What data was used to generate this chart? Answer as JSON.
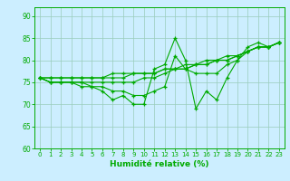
{
  "xlabel": "Humidité relative (%)",
  "bg_color": "#cceeff",
  "grid_color": "#99ccbb",
  "line_color": "#00aa00",
  "xlim": [
    -0.5,
    23.5
  ],
  "ylim": [
    60,
    92
  ],
  "yticks": [
    60,
    65,
    70,
    75,
    80,
    85,
    90
  ],
  "xticks": [
    0,
    1,
    2,
    3,
    4,
    5,
    6,
    7,
    8,
    9,
    10,
    11,
    12,
    13,
    14,
    15,
    16,
    17,
    18,
    19,
    20,
    21,
    22,
    23
  ],
  "series": [
    [
      76,
      75,
      75,
      75,
      74,
      74,
      73,
      71,
      72,
      70,
      70,
      78,
      79,
      85,
      80,
      69,
      73,
      71,
      76,
      80,
      83,
      84,
      83,
      84
    ],
    [
      76,
      75,
      75,
      75,
      75,
      74,
      74,
      73,
      73,
      72,
      72,
      73,
      74,
      81,
      78,
      77,
      77,
      77,
      79,
      80,
      82,
      83,
      83,
      84
    ],
    [
      76,
      75,
      75,
      75,
      75,
      75,
      75,
      75,
      75,
      75,
      76,
      76,
      77,
      78,
      79,
      79,
      80,
      80,
      81,
      81,
      82,
      83,
      83,
      84
    ],
    [
      76,
      76,
      76,
      76,
      76,
      76,
      76,
      76,
      76,
      77,
      77,
      77,
      78,
      78,
      78,
      79,
      79,
      80,
      80,
      81,
      82,
      83,
      83,
      84
    ],
    [
      76,
      76,
      76,
      76,
      76,
      76,
      76,
      77,
      77,
      77,
      77,
      77,
      78,
      78,
      78,
      79,
      79,
      80,
      80,
      81,
      82,
      83,
      83,
      84
    ]
  ]
}
